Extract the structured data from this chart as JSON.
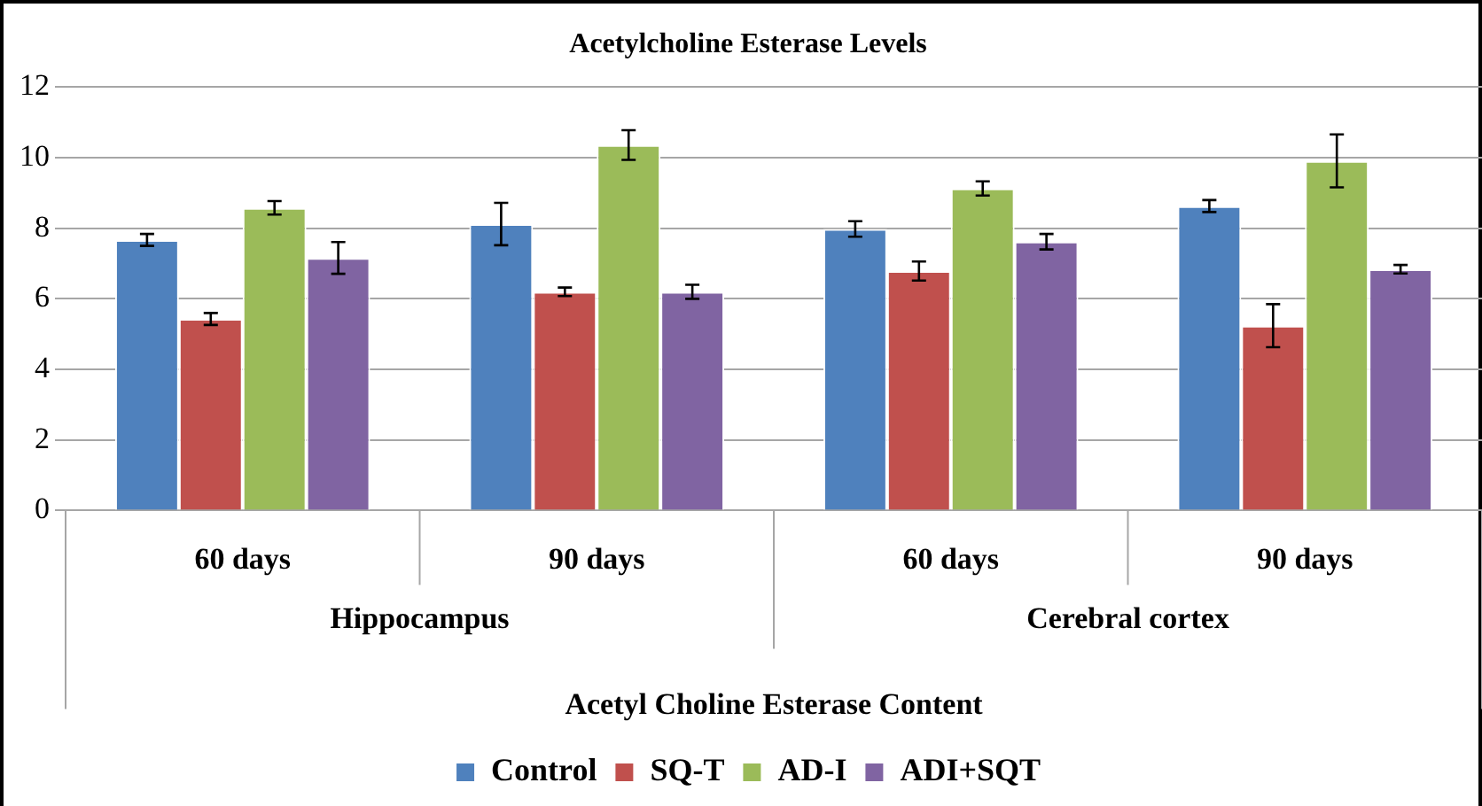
{
  "chart_data": {
    "type": "bar",
    "title": "Acetylcholine Esterase Levels",
    "xlabel": "Acetyl Choline Esterase Content",
    "categories": [
      "60 days",
      "90 days",
      "60 days",
      "90 days"
    ],
    "annotations": [
      "Hippocampus",
      "Cerebral cortex"
    ],
    "series": [
      {
        "name": "Control",
        "color": "#4f81bd",
        "values": [
          7.67,
          8.12,
          7.98,
          8.63
        ],
        "errors": [
          0.17,
          0.6,
          0.22,
          0.17
        ]
      },
      {
        "name": "SQ-T",
        "color": "#c0504d",
        "values": [
          5.43,
          6.2,
          6.79,
          5.24
        ],
        "errors": [
          0.17,
          0.12,
          0.27,
          0.61
        ]
      },
      {
        "name": "AD-I",
        "color": "#9bbb59",
        "values": [
          8.58,
          10.36,
          9.13,
          9.91
        ],
        "errors": [
          0.19,
          0.42,
          0.2,
          0.75
        ]
      },
      {
        "name": "ADI+SQT",
        "color": "#8064a2",
        "values": [
          7.16,
          6.2,
          7.62,
          6.84
        ],
        "errors": [
          0.45,
          0.2,
          0.22,
          0.12
        ]
      }
    ],
    "ylim": [
      0,
      12
    ],
    "yticks": [
      0,
      2,
      4,
      6,
      8,
      10,
      12
    ],
    "grid": "y",
    "legend": "bottom"
  }
}
